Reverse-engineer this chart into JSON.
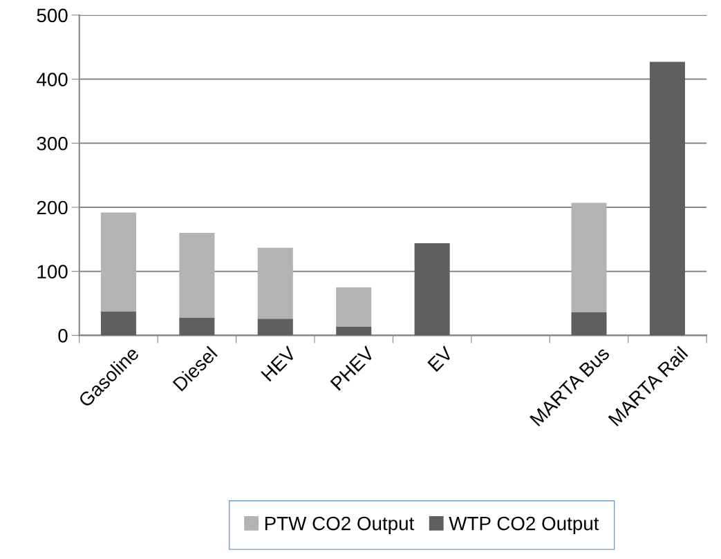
{
  "chart_data": {
    "type": "bar",
    "stacked": true,
    "categories": [
      "Gasoline",
      "Diesel",
      "HEV",
      "PHEV",
      "EV",
      null,
      "MARTA Bus",
      "MARTA Rail"
    ],
    "series": [
      {
        "name": "WTP CO2 Output",
        "color": "#5f5f5f",
        "values": [
          37,
          28,
          26,
          14,
          144,
          null,
          36,
          427
        ]
      },
      {
        "name": "PTW CO2 Output",
        "color": "#b3b3b3",
        "values": [
          155,
          132,
          111,
          61,
          null,
          null,
          171,
          null
        ]
      }
    ],
    "ylim": [
      0,
      500
    ],
    "yticks": [
      0,
      100,
      200,
      300,
      400,
      500
    ],
    "grid": "y",
    "legend": "bottom"
  }
}
